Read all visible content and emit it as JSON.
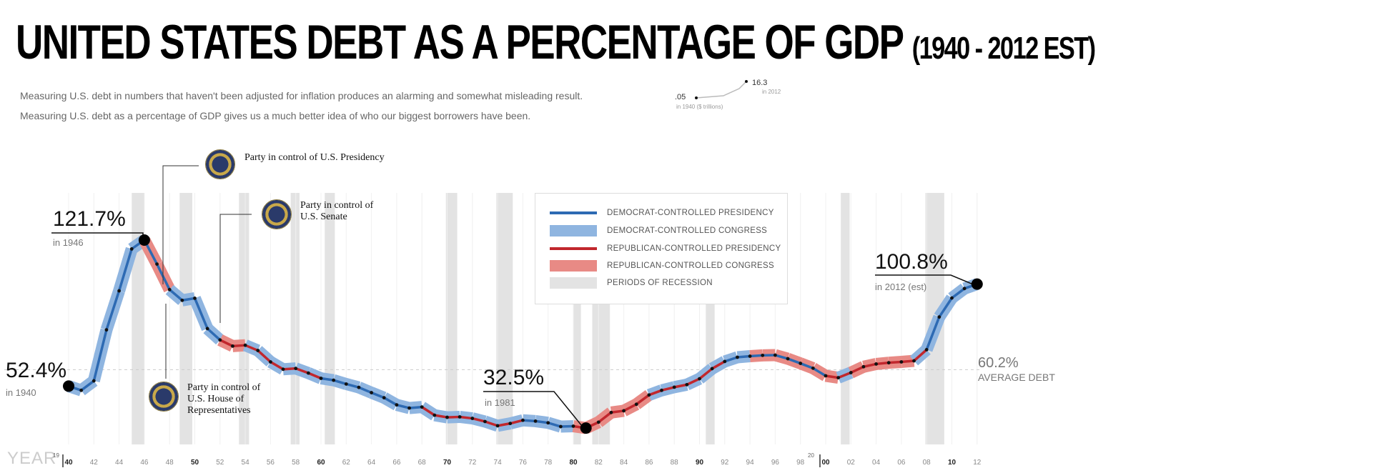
{
  "header": {
    "title": "UNITED STATES DEBT AS A PERCENTAGE OF GDP",
    "title_range": "(1940 - 2012 EST)",
    "subtitle_1": "Measuring U.S. debt in numbers that haven't been adjusted for inflation produces an alarming and somewhat misleading result.",
    "subtitle_2": "Measuring U.S. debt as a percentage of GDP gives us a much better idea of who our biggest borrowers have been."
  },
  "mini_chart": {
    "start_value": ".05",
    "start_note": "in 1940 ($ trillions)",
    "end_value": "16.3",
    "end_note": "in 2012"
  },
  "legend": [
    {
      "label": "DEMOCRAT-CONTROLLED PRESIDENCY",
      "color": "#2d6ab3",
      "style": "thin"
    },
    {
      "label": "DEMOCRAT-CONTROLLED CONGRESS",
      "color": "#8fb5e0",
      "style": "thick"
    },
    {
      "label": "REPUBLICAN-CONTROLLED PRESIDENCY",
      "color": "#c1272d",
      "style": "thin"
    },
    {
      "label": "REPUBLICAN-CONTROLLED CONGRESS",
      "color": "#e88a85",
      "style": "thick"
    },
    {
      "label": "PERIODS OF RECESSION",
      "color": "#e3e3e3",
      "style": "thick"
    }
  ],
  "seals": {
    "presidency": "Party in control of U.S. Presidency",
    "senate": "Party in control of U.S. Senate",
    "house": "Party in control of U.S. House of Representatives"
  },
  "annotations": {
    "a1940_value": "52.4%",
    "a1940_note": "in 1940",
    "a1946_value": "121.7%",
    "a1946_note": "in 1946",
    "a1981_value": "32.5%",
    "a1981_note": "in 1981",
    "a2012_value": "100.8%",
    "a2012_note": "in 2012 (est)",
    "average_value": "60.2%",
    "average_label": "AVERAGE DEBT"
  },
  "x_axis": {
    "label": "YEAR",
    "prefix_19": "19",
    "prefix_20": "20"
  },
  "colors": {
    "dem_presidency": "#2d6ab3",
    "dem_congress": "#8fb5e0",
    "rep_presidency": "#c1272d",
    "rep_congress": "#e88a85",
    "recession": "#e3e3e3",
    "dots": "#111111"
  },
  "chart_data": {
    "type": "line",
    "xlim": [
      1939,
      2013
    ],
    "ylim": [
      28,
      127
    ],
    "average": 60.2,
    "x_ticks": [
      {
        "year": 1940,
        "label": "40",
        "bold": true
      },
      {
        "year": 1942,
        "label": "42",
        "bold": false
      },
      {
        "year": 1944,
        "label": "44",
        "bold": false
      },
      {
        "year": 1946,
        "label": "46",
        "bold": false
      },
      {
        "year": 1948,
        "label": "48",
        "bold": false
      },
      {
        "year": 1950,
        "label": "50",
        "bold": true
      },
      {
        "year": 1952,
        "label": "52",
        "bold": false
      },
      {
        "year": 1954,
        "label": "54",
        "bold": false
      },
      {
        "year": 1956,
        "label": "56",
        "bold": false
      },
      {
        "year": 1958,
        "label": "58",
        "bold": false
      },
      {
        "year": 1960,
        "label": "60",
        "bold": true
      },
      {
        "year": 1962,
        "label": "62",
        "bold": false
      },
      {
        "year": 1964,
        "label": "64",
        "bold": false
      },
      {
        "year": 1966,
        "label": "66",
        "bold": false
      },
      {
        "year": 1968,
        "label": "68",
        "bold": false
      },
      {
        "year": 1970,
        "label": "70",
        "bold": true
      },
      {
        "year": 1972,
        "label": "72",
        "bold": false
      },
      {
        "year": 1974,
        "label": "74",
        "bold": false
      },
      {
        "year": 1976,
        "label": "76",
        "bold": false
      },
      {
        "year": 1978,
        "label": "78",
        "bold": false
      },
      {
        "year": 1980,
        "label": "80",
        "bold": true
      },
      {
        "year": 1982,
        "label": "82",
        "bold": false
      },
      {
        "year": 1984,
        "label": "84",
        "bold": false
      },
      {
        "year": 1986,
        "label": "86",
        "bold": false
      },
      {
        "year": 1988,
        "label": "88",
        "bold": false
      },
      {
        "year": 1990,
        "label": "90",
        "bold": true
      },
      {
        "year": 1992,
        "label": "92",
        "bold": false
      },
      {
        "year": 1994,
        "label": "94",
        "bold": false
      },
      {
        "year": 1996,
        "label": "96",
        "bold": false
      },
      {
        "year": 1998,
        "label": "98",
        "bold": false
      },
      {
        "year": 2000,
        "label": "00",
        "bold": true
      },
      {
        "year": 2002,
        "label": "02",
        "bold": false
      },
      {
        "year": 2004,
        "label": "04",
        "bold": false
      },
      {
        "year": 2006,
        "label": "06",
        "bold": false
      },
      {
        "year": 2008,
        "label": "08",
        "bold": false
      },
      {
        "year": 2010,
        "label": "10",
        "bold": true
      },
      {
        "year": 2012,
        "label": "12",
        "bold": false
      }
    ],
    "recessions": [
      [
        1945.0,
        1946.0
      ],
      [
        1948.8,
        1949.8
      ],
      [
        1953.5,
        1954.3
      ],
      [
        1957.6,
        1958.3
      ],
      [
        1960.3,
        1961.1
      ],
      [
        1969.9,
        1970.8
      ],
      [
        1973.9,
        1975.2
      ],
      [
        1980.0,
        1980.6
      ],
      [
        1981.5,
        1982.9
      ],
      [
        1990.5,
        1991.2
      ],
      [
        2001.2,
        2001.9
      ],
      [
        2007.9,
        2009.4
      ]
    ],
    "series": [
      {
        "year": 1940,
        "value": 52.4,
        "pres": "D",
        "cong": "D"
      },
      {
        "year": 1941,
        "value": 50.4,
        "pres": "D",
        "cong": "D"
      },
      {
        "year": 1942,
        "value": 54.9,
        "pres": "D",
        "cong": "D"
      },
      {
        "year": 1943,
        "value": 79.1,
        "pres": "D",
        "cong": "D"
      },
      {
        "year": 1944,
        "value": 97.6,
        "pres": "D",
        "cong": "D"
      },
      {
        "year": 1945,
        "value": 117.5,
        "pres": "D",
        "cong": "D"
      },
      {
        "year": 1946,
        "value": 121.7,
        "pres": "D",
        "cong": "D"
      },
      {
        "year": 1947,
        "value": 110.3,
        "pres": "D",
        "cong": "R"
      },
      {
        "year": 1948,
        "value": 98.2,
        "pres": "D",
        "cong": "R"
      },
      {
        "year": 1949,
        "value": 93.1,
        "pres": "D",
        "cong": "D"
      },
      {
        "year": 1950,
        "value": 94.1,
        "pres": "D",
        "cong": "D"
      },
      {
        "year": 1951,
        "value": 79.7,
        "pres": "D",
        "cong": "D"
      },
      {
        "year": 1952,
        "value": 74.3,
        "pres": "D",
        "cong": "D"
      },
      {
        "year": 1953,
        "value": 71.4,
        "pres": "R",
        "cong": "R"
      },
      {
        "year": 1954,
        "value": 71.8,
        "pres": "R",
        "cong": "R"
      },
      {
        "year": 1955,
        "value": 69.3,
        "pres": "R",
        "cong": "D"
      },
      {
        "year": 1956,
        "value": 63.9,
        "pres": "R",
        "cong": "D"
      },
      {
        "year": 1957,
        "value": 60.4,
        "pres": "R",
        "cong": "D"
      },
      {
        "year": 1958,
        "value": 60.8,
        "pres": "R",
        "cong": "D"
      },
      {
        "year": 1959,
        "value": 58.6,
        "pres": "R",
        "cong": "D"
      },
      {
        "year": 1960,
        "value": 56.1,
        "pres": "R",
        "cong": "D"
      },
      {
        "year": 1961,
        "value": 55.2,
        "pres": "D",
        "cong": "D"
      },
      {
        "year": 1962,
        "value": 53.4,
        "pres": "D",
        "cong": "D"
      },
      {
        "year": 1963,
        "value": 51.8,
        "pres": "D",
        "cong": "D"
      },
      {
        "year": 1964,
        "value": 49.3,
        "pres": "D",
        "cong": "D"
      },
      {
        "year": 1965,
        "value": 46.9,
        "pres": "D",
        "cong": "D"
      },
      {
        "year": 1966,
        "value": 43.5,
        "pres": "D",
        "cong": "D"
      },
      {
        "year": 1967,
        "value": 42.0,
        "pres": "D",
        "cong": "D"
      },
      {
        "year": 1968,
        "value": 42.5,
        "pres": "D",
        "cong": "D"
      },
      {
        "year": 1969,
        "value": 38.6,
        "pres": "R",
        "cong": "D"
      },
      {
        "year": 1970,
        "value": 37.6,
        "pres": "R",
        "cong": "D"
      },
      {
        "year": 1971,
        "value": 37.8,
        "pres": "R",
        "cong": "D"
      },
      {
        "year": 1972,
        "value": 37.1,
        "pres": "R",
        "cong": "D"
      },
      {
        "year": 1973,
        "value": 35.6,
        "pres": "R",
        "cong": "D"
      },
      {
        "year": 1974,
        "value": 33.6,
        "pres": "R",
        "cong": "D"
      },
      {
        "year": 1975,
        "value": 34.7,
        "pres": "R",
        "cong": "D"
      },
      {
        "year": 1976,
        "value": 36.2,
        "pres": "R",
        "cong": "D"
      },
      {
        "year": 1977,
        "value": 35.8,
        "pres": "D",
        "cong": "D"
      },
      {
        "year": 1978,
        "value": 35.0,
        "pres": "D",
        "cong": "D"
      },
      {
        "year": 1979,
        "value": 33.2,
        "pres": "D",
        "cong": "D"
      },
      {
        "year": 1980,
        "value": 33.4,
        "pres": "D",
        "cong": "D"
      },
      {
        "year": 1981,
        "value": 32.5,
        "pres": "R",
        "cong": "R"
      },
      {
        "year": 1982,
        "value": 35.3,
        "pres": "R",
        "cong": "R"
      },
      {
        "year": 1983,
        "value": 39.9,
        "pres": "R",
        "cong": "R"
      },
      {
        "year": 1984,
        "value": 40.7,
        "pres": "R",
        "cong": "R"
      },
      {
        "year": 1985,
        "value": 43.8,
        "pres": "R",
        "cong": "R"
      },
      {
        "year": 1986,
        "value": 48.2,
        "pres": "R",
        "cong": "R"
      },
      {
        "year": 1987,
        "value": 50.4,
        "pres": "R",
        "cong": "D"
      },
      {
        "year": 1988,
        "value": 51.9,
        "pres": "R",
        "cong": "D"
      },
      {
        "year": 1989,
        "value": 53.1,
        "pres": "R",
        "cong": "D"
      },
      {
        "year": 1990,
        "value": 55.9,
        "pres": "R",
        "cong": "D"
      },
      {
        "year": 1991,
        "value": 60.7,
        "pres": "R",
        "cong": "D"
      },
      {
        "year": 1992,
        "value": 64.1,
        "pres": "R",
        "cong": "D"
      },
      {
        "year": 1993,
        "value": 66.1,
        "pres": "D",
        "cong": "D"
      },
      {
        "year": 1994,
        "value": 66.6,
        "pres": "D",
        "cong": "D"
      },
      {
        "year": 1995,
        "value": 67.0,
        "pres": "D",
        "cong": "R"
      },
      {
        "year": 1996,
        "value": 67.1,
        "pres": "D",
        "cong": "R"
      },
      {
        "year": 1997,
        "value": 65.4,
        "pres": "D",
        "cong": "R"
      },
      {
        "year": 1998,
        "value": 63.2,
        "pres": "D",
        "cong": "R"
      },
      {
        "year": 1999,
        "value": 60.9,
        "pres": "D",
        "cong": "R"
      },
      {
        "year": 2000,
        "value": 57.3,
        "pres": "D",
        "cong": "R"
      },
      {
        "year": 2001,
        "value": 56.4,
        "pres": "R",
        "cong": "R"
      },
      {
        "year": 2002,
        "value": 58.8,
        "pres": "R",
        "cong": "D"
      },
      {
        "year": 2003,
        "value": 61.6,
        "pres": "R",
        "cong": "R"
      },
      {
        "year": 2004,
        "value": 62.9,
        "pres": "R",
        "cong": "R"
      },
      {
        "year": 2005,
        "value": 63.5,
        "pres": "R",
        "cong": "R"
      },
      {
        "year": 2006,
        "value": 63.9,
        "pres": "R",
        "cong": "R"
      },
      {
        "year": 2007,
        "value": 64.4,
        "pres": "R",
        "cong": "R"
      },
      {
        "year": 2008,
        "value": 69.7,
        "pres": "R",
        "cong": "D"
      },
      {
        "year": 2009,
        "value": 85.2,
        "pres": "D",
        "cong": "D"
      },
      {
        "year": 2010,
        "value": 94.2,
        "pres": "D",
        "cong": "D"
      },
      {
        "year": 2011,
        "value": 98.7,
        "pres": "D",
        "cong": "D"
      },
      {
        "year": 2012,
        "value": 100.8,
        "pres": "D",
        "cong": "D"
      }
    ]
  }
}
